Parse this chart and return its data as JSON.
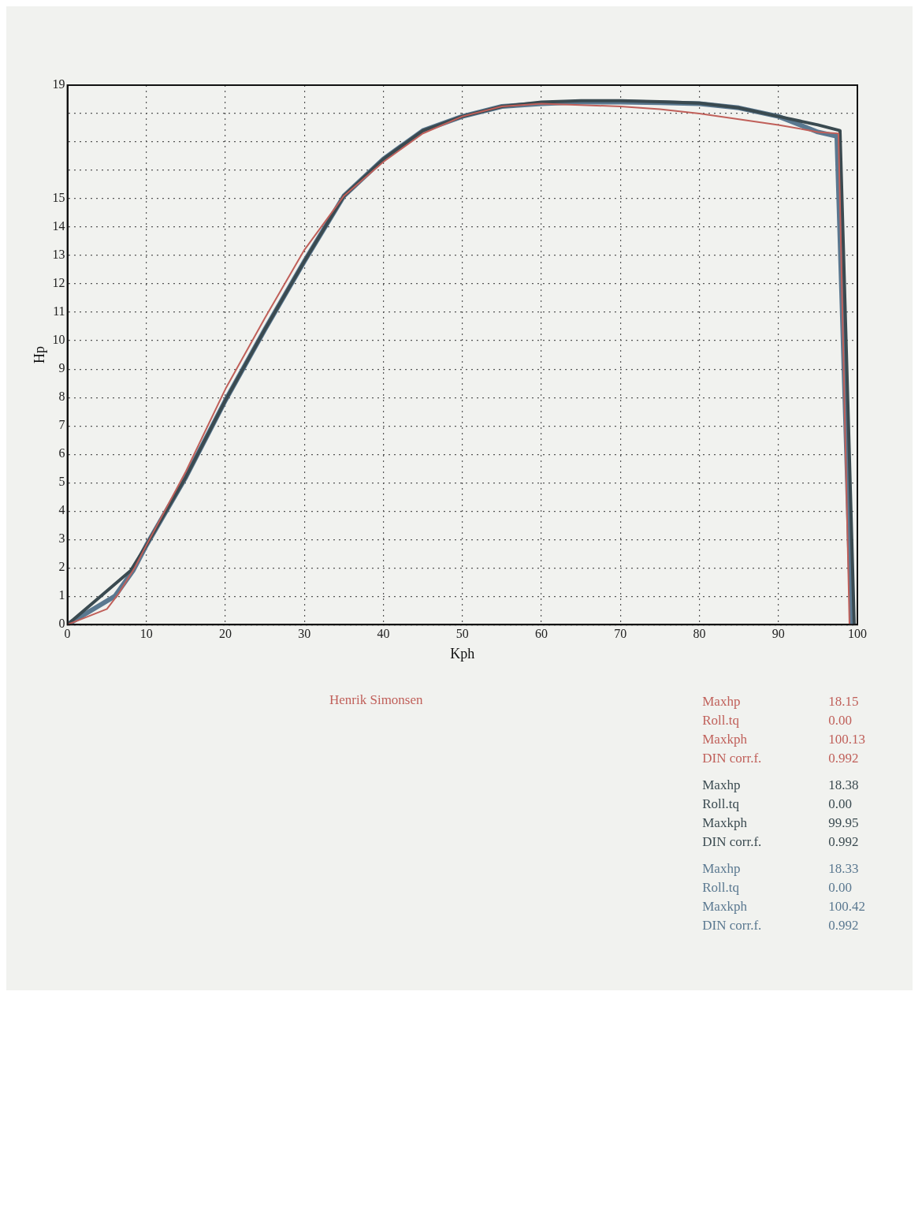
{
  "chart_data": {
    "type": "line",
    "xlabel": "Kph",
    "ylabel": "Hp",
    "xlim": [
      0,
      100
    ],
    "ylim": [
      0,
      19
    ],
    "xticks": [
      0,
      10,
      20,
      30,
      40,
      50,
      60,
      70,
      80,
      90,
      100
    ],
    "yticks": [
      0,
      1,
      2,
      3,
      4,
      5,
      6,
      7,
      8,
      9,
      10,
      11,
      12,
      13,
      14,
      15,
      {
        "value": 16,
        "label": null
      },
      {
        "value": 17,
        "label": null
      },
      {
        "value": 18,
        "label": null
      },
      19
    ],
    "grid": true,
    "legend": false,
    "marker": "none",
    "line_style": "solid",
    "series": [
      {
        "color": "#c0605a",
        "x": [
          0,
          5,
          6.5,
          8.5,
          10,
          15,
          20,
          25,
          30,
          35,
          40,
          45,
          50,
          55,
          60,
          65,
          70,
          75,
          80,
          85,
          90,
          95,
          97.6,
          99
        ],
        "values": [
          0,
          0.55,
          1.1,
          2.0,
          2.8,
          5.4,
          8.3,
          10.8,
          13.2,
          15.1,
          16.3,
          17.3,
          17.9,
          18.25,
          18.35,
          18.3,
          18.25,
          18.15,
          18.0,
          17.8,
          17.6,
          17.35,
          17.3,
          0
        ]
      },
      {
        "color": "#3a4a50",
        "x": [
          0,
          8,
          10,
          15,
          20,
          25,
          30,
          35,
          40,
          45,
          50,
          55,
          60,
          65,
          70,
          75,
          80,
          85,
          90,
          95,
          97.8,
          99.6
        ],
        "values": [
          0,
          1.9,
          2.8,
          5.2,
          7.9,
          10.4,
          12.8,
          15.1,
          16.4,
          17.4,
          17.9,
          18.25,
          18.4,
          18.45,
          18.45,
          18.42,
          18.37,
          18.2,
          17.9,
          17.6,
          17.4,
          0
        ]
      },
      {
        "color": "#5a7890",
        "x": [
          0,
          6,
          8.3,
          10,
          15,
          20,
          25,
          30,
          35,
          40,
          45,
          50,
          55,
          60,
          65,
          70,
          75,
          80,
          85,
          90,
          95,
          97.4,
          99.3
        ],
        "values": [
          0,
          1.0,
          1.9,
          2.8,
          5.2,
          7.9,
          10.4,
          12.8,
          15.1,
          16.4,
          17.4,
          17.9,
          18.25,
          18.35,
          18.4,
          18.4,
          18.38,
          18.35,
          18.2,
          17.9,
          17.35,
          17.2,
          0
        ]
      }
    ],
    "annotations": [
      "Henrik Simonsen",
      "Maxhp 18.15",
      "Roll.tq 0.00",
      "Maxkph 100.13",
      "DIN corr.f. 0.992",
      "Maxhp 18.38",
      "Roll.tq 0.00",
      "Maxkph 99.95",
      "DIN corr.f. 0.992",
      "Maxhp 18.33",
      "Roll.tq 0.00",
      "Maxkph 100.42",
      "DIN corr.f. 0.992"
    ]
  }
}
